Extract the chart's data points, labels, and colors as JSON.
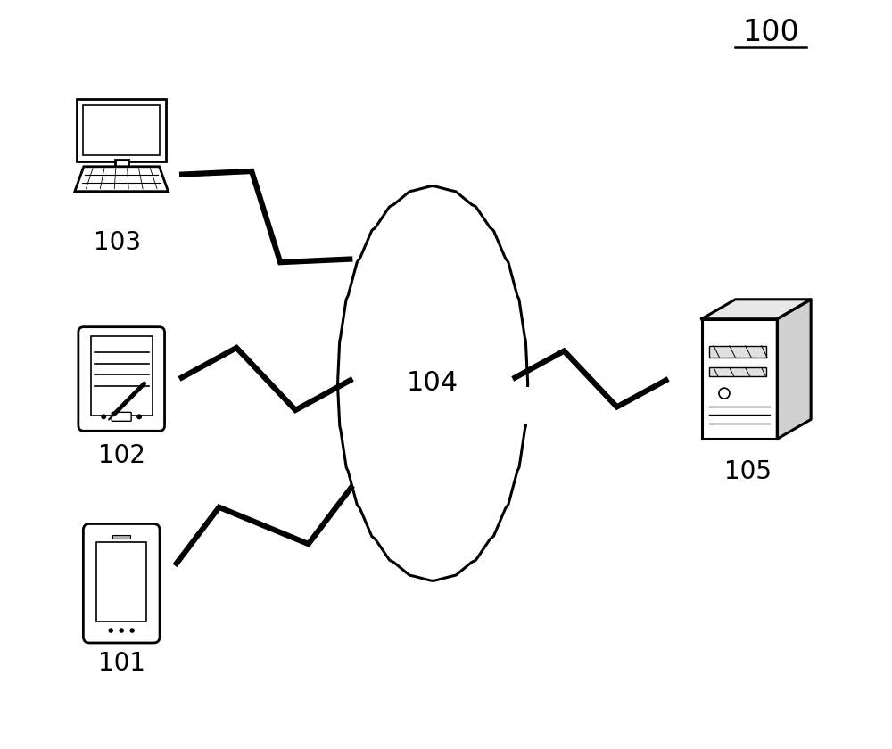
{
  "title_label": "100",
  "label_103": "103",
  "label_102": "102",
  "label_101": "101",
  "label_104": "104",
  "label_105": "105",
  "bg_color": "#ffffff",
  "line_color": "#000000"
}
